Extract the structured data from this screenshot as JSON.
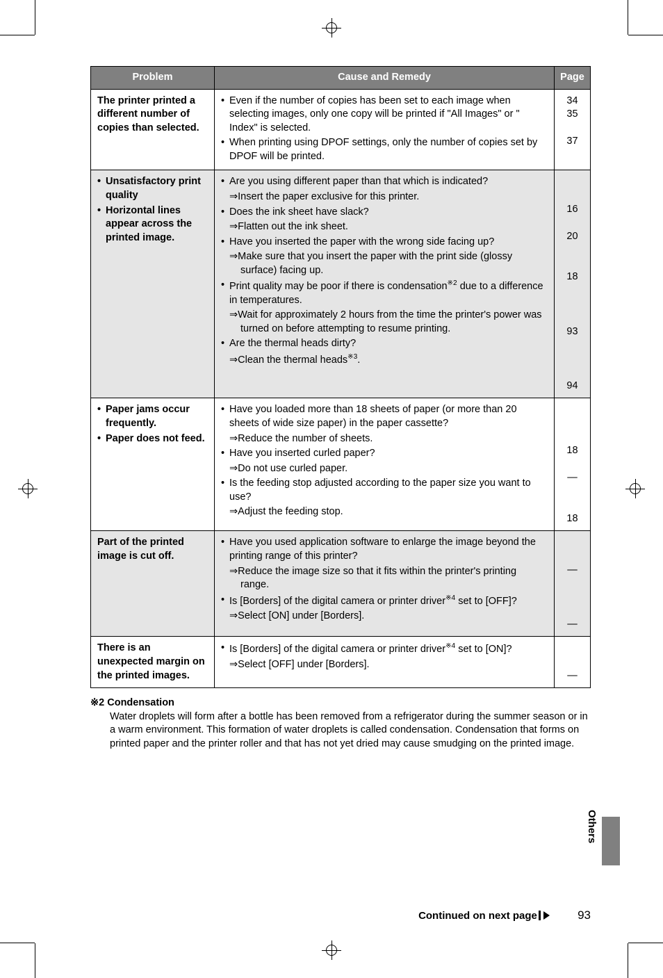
{
  "table": {
    "headers": {
      "problem": "Problem",
      "cause": "Cause and Remedy",
      "page": "Page"
    },
    "rows": [
      {
        "shaded": false,
        "problem": "The printer printed a different number of copies than selected.",
        "cause_html": "<div class='bullet-item'><span class='b'>•</span><span class='t'>Even if the number of copies has been set to each image when selecting images, only one copy will be printed if \"All Images\" or \" Index\" is selected.</span></div><div class='bullet-item'><span class='b'>•</span><span class='t'>When printing using DPOF settings, only the number of copies set by DPOF will be printed.</span></div>",
        "pages": [
          "34",
          "35",
          "",
          "37"
        ]
      },
      {
        "shaded": true,
        "problem": "• Unsatisfactory print quality\n• Horizontal lines appear across the printed image.",
        "problem_html": "<div class='bullet-item'><span class='b'>•</span><span class='t'>Unsatisfactory print quality</span></div><div class='bullet-item'><span class='b'>•</span><span class='t'>Horizontal lines appear across the printed image.</span></div>",
        "cause_html": "<div class='bullet-item'><span class='b'>•</span><span class='t'>Are you using different paper than that which is indicated?</span></div><div class='arrow-line'><span class='arr'>⇒</span>Insert the paper exclusive for this printer.</div><div class='bullet-item'><span class='b'>•</span><span class='t'>Does the ink sheet have slack?</span></div><div class='arrow-line'><span class='arr'>⇒</span>Flatten out the ink sheet.</div><div class='bullet-item'><span class='b'>•</span><span class='t'>Have you inserted the paper with the wrong side facing up?</span></div><div class='arrow-line'><span class='arr'>⇒</span>Make sure that you insert the paper with the print side (glossy surface) facing up.</div><div class='bullet-item'><span class='b'>•</span><span class='t'>Print quality may be poor if there is condensation<sup>※2</sup> due to a difference in temperatures.</span></div><div class='arrow-line'><span class='arr'>⇒</span>Wait for approximately 2 hours from the time the printer's power was turned on before attempting to resume printing.</div><div class='bullet-item'><span class='b'>•</span><span class='t'>Are the thermal heads dirty?</span></div><div class='arrow-line'><span class='arr'>⇒</span>Clean the thermal heads<sup>※3</sup>.</div>",
        "pages": [
          "",
          "",
          "16",
          "",
          "20",
          "",
          "",
          "18",
          "",
          "",
          "",
          "93",
          "",
          "",
          "",
          "94"
        ]
      },
      {
        "shaded": false,
        "problem_html": "<div class='bullet-item'><span class='b'>•</span><span class='t'>Paper jams occur frequently.</span></div><div class='bullet-item'><span class='b'>•</span><span class='t'>Paper does not feed.</span></div>",
        "cause_html": "<div class='bullet-item'><span class='b'>•</span><span class='t'>Have you loaded more than 18 sheets of paper (or more than 20 sheets of wide size paper) in the paper cassette?</span></div><div class='arrow-line'><span class='arr'>⇒</span>Reduce the number of sheets.</div><div class='bullet-item'><span class='b'>•</span><span class='t'>Have you inserted curled paper?</span></div><div class='arrow-line'><span class='arr'>⇒</span>Do not use curled paper.</div><div class='bullet-item'><span class='b'>•</span><span class='t'>Is the feeding stop adjusted according to the paper size you want to use?</span></div><div class='arrow-line'><span class='arr'>⇒</span>Adjust the feeding stop.</div>",
        "pages": [
          "",
          "",
          "",
          "18",
          "",
          "—",
          "",
          "",
          "18"
        ]
      },
      {
        "shaded": true,
        "problem": "Part of the printed image is cut off.",
        "cause_html": "<div class='bullet-item'><span class='b'>•</span><span class='t'>Have you used application software to enlarge the image beyond the printing range of this printer?</span></div><div class='arrow-line'><span class='arr'>⇒</span>Reduce the image size so that it fits within the printer's printing range.</div><div class='bullet-item'><span class='b'>•</span><span class='t'>Is [Borders] of the digital camera or printer driver<sup>※4</sup> set to [OFF]?</span></div><div class='arrow-line'><span class='arr'>⇒</span>Select [ON] under [Borders].</div>",
        "pages": [
          "",
          "",
          "—",
          "",
          "",
          "",
          "—"
        ]
      },
      {
        "shaded": false,
        "problem": "There is an unexpected margin on the printed images.",
        "cause_html": "<div class='bullet-item'><span class='b'>•</span><span class='t'>Is [Borders] of the digital camera or printer driver<sup>※4</sup> set to [ON]?</span></div><div class='arrow-line'><span class='arr'>⇒</span>Select [OFF] under [Borders].</div>",
        "pages": [
          "",
          "",
          "—"
        ]
      }
    ]
  },
  "footnote": {
    "title": "※2 Condensation",
    "body": "Water droplets will form after a bottle has been removed from a refrigerator during the summer season or in a warm environment. This formation of water droplets is called condensation. Condensation that forms on printed paper and the printer roller and that has not yet dried may cause smudging on the printed image."
  },
  "side_label": "Others",
  "footer": {
    "continued": "Continued on next page",
    "page_number": "93"
  }
}
